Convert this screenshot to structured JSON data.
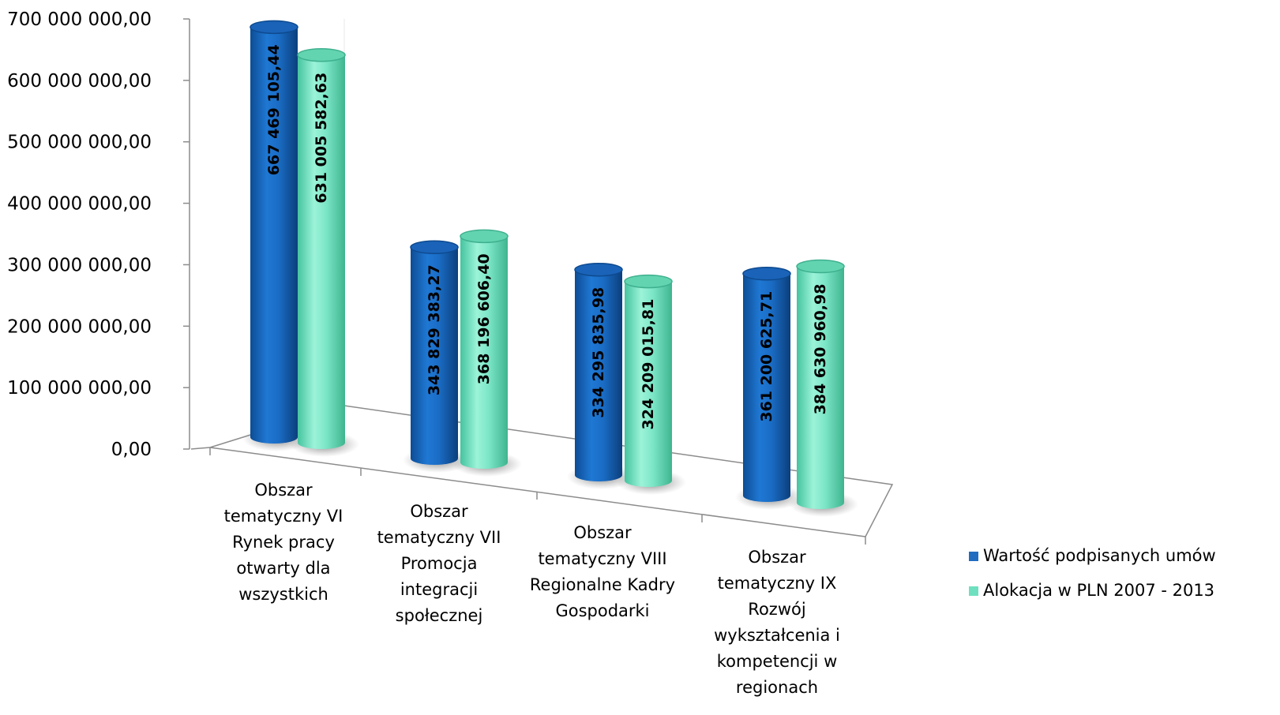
{
  "chart_data": {
    "type": "bar",
    "style": "3d-cylinder",
    "categories": [
      [
        "Obszar",
        "tematyczny VI",
        "Rynek pracy",
        "otwarty dla",
        "wszystkich"
      ],
      [
        "Obszar",
        "tematyczny VII",
        "Promocja",
        "integracji",
        "społecznej"
      ],
      [
        "Obszar",
        "tematyczny VIII",
        "Regionalne Kadry",
        "Gospodarki"
      ],
      [
        "Obszar",
        "tematyczny IX",
        "Rozwój",
        "wykształcenia i",
        "kompetencji w",
        "regionach"
      ]
    ],
    "series": [
      {
        "name": "Wartość podpisanych umów",
        "color": "#1f6cc0",
        "values": [
          667469105.44,
          343829383.27,
          334295835.98,
          361200625.71
        ],
        "labels": [
          "667 469 105,44",
          "343 829 383,27",
          "334 295 835,98",
          "361 200 625,71"
        ]
      },
      {
        "name": "Alokacja w PLN 2007 - 2013",
        "color": "#6ee0bf",
        "values": [
          631005582.63,
          368196606.4,
          324209015.81,
          384630960.98
        ],
        "labels": [
          "631 005 582,63",
          "368 196 606,40",
          "324 209 015,81",
          "384 630 960,98"
        ]
      }
    ],
    "yticks": [
      "0,00",
      "100 000 000,00",
      "200 000 000,00",
      "300 000 000,00",
      "400 000 000,00",
      "500 000 000,00",
      "600 000 000,00",
      "700 000 000,00"
    ],
    "ylim": [
      0,
      700000000
    ],
    "legend_position": "right"
  }
}
